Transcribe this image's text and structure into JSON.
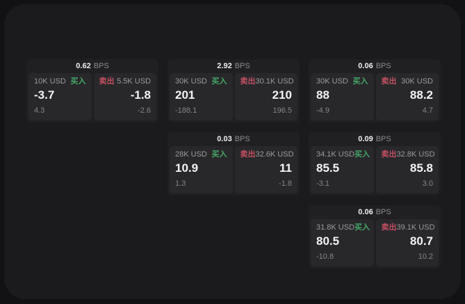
{
  "page": {
    "background": "#121214",
    "panel_background": "#1b1b1d",
    "card_background": "#202023",
    "pane_background": "#28282b"
  },
  "labels": {
    "bps": "BPS",
    "buy": "买入",
    "sell": "卖出"
  },
  "colors": {
    "buy": "#45a768",
    "sell": "#c25062",
    "value_text": "#f4f4f5",
    "muted_text": "#9b9b9f"
  },
  "cards": [
    {
      "row": 1,
      "col": 1,
      "bps": "0.62",
      "buy": {
        "amount": "10K USD",
        "price": "-3.7",
        "delta": "4.3"
      },
      "sell": {
        "amount": "5.5K USD",
        "price": "-1.8",
        "delta": "-2.6"
      }
    },
    {
      "row": 1,
      "col": 2,
      "bps": "2.92",
      "buy": {
        "amount": "30K USD",
        "price": "201",
        "delta": "-188.1"
      },
      "sell": {
        "amount": "30.1K USD",
        "price": "210",
        "delta": "196.5"
      }
    },
    {
      "row": 1,
      "col": 3,
      "bps": "0.06",
      "buy": {
        "amount": "30K USD",
        "price": "88",
        "delta": "-4.9"
      },
      "sell": {
        "amount": "30K USD",
        "price": "88.2",
        "delta": "4.7"
      }
    },
    {
      "row": 2,
      "col": 2,
      "bps": "0.03",
      "buy": {
        "amount": "28K USD",
        "price": "10.9",
        "delta": "1.3"
      },
      "sell": {
        "amount": "32.6K USD",
        "price": "11",
        "delta": "-1.8"
      }
    },
    {
      "row": 2,
      "col": 3,
      "bps": "0.09",
      "buy": {
        "amount": "34.1K USD",
        "price": "85.5",
        "delta": "-3.1"
      },
      "sell": {
        "amount": "32.8K USD",
        "price": "85.8",
        "delta": "3.0"
      }
    },
    {
      "row": 3,
      "col": 3,
      "bps": "0.06",
      "buy": {
        "amount": "31.8K USD",
        "price": "80.5",
        "delta": "-10.8"
      },
      "sell": {
        "amount": "39.1K USD",
        "price": "80.7",
        "delta": "10.2"
      }
    }
  ]
}
